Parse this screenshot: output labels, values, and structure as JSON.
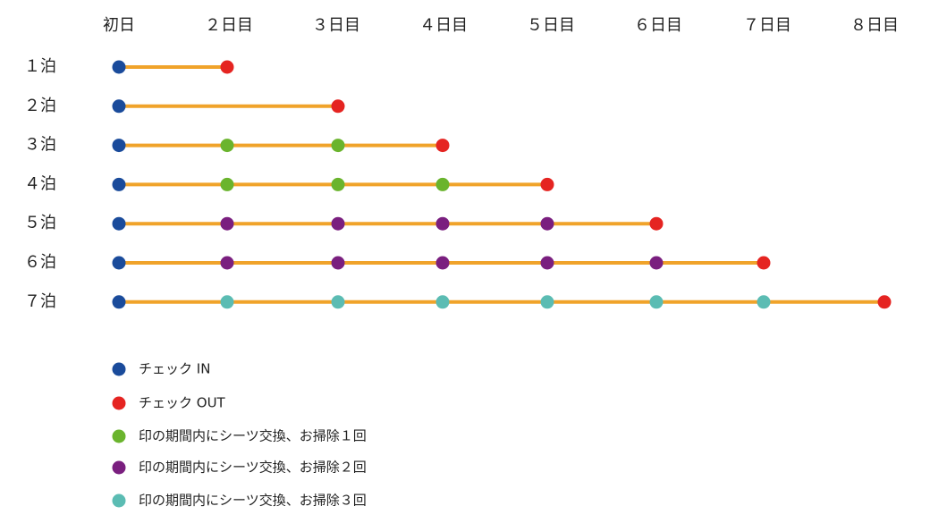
{
  "days": [
    "初日",
    "２日目",
    "３日目",
    "４日目",
    "５日目",
    "６日目",
    "７日目",
    "８日目"
  ],
  "line_color": "#f0a32a",
  "rows": [
    {
      "label": "１泊",
      "colors": [
        "#1a4b9b",
        "#e52421"
      ]
    },
    {
      "label": "２泊",
      "colors": [
        "#1a4b9b",
        null,
        "#e52421"
      ]
    },
    {
      "label": "３泊",
      "colors": [
        "#1a4b9b",
        "#6ab42d",
        "#6ab42d",
        "#e52421"
      ]
    },
    {
      "label": "４泊",
      "colors": [
        "#1a4b9b",
        "#6ab42d",
        "#6ab42d",
        "#6ab42d",
        "#e52421"
      ]
    },
    {
      "label": "５泊",
      "colors": [
        "#1a4b9b",
        "#7a1f7f",
        "#7a1f7f",
        "#7a1f7f",
        "#7a1f7f",
        "#e52421"
      ]
    },
    {
      "label": "６泊",
      "colors": [
        "#1a4b9b",
        "#7a1f7f",
        "#7a1f7f",
        "#7a1f7f",
        "#7a1f7f",
        "#7a1f7f",
        "#e52421"
      ]
    },
    {
      "label": "７泊",
      "colors": [
        "#1a4b9b",
        "#5bbcb3",
        "#5bbcb3",
        "#5bbcb3",
        "#5bbcb3",
        "#5bbcb3",
        "#5bbcb3",
        "#e52421"
      ]
    }
  ],
  "legend": [
    {
      "color": "#1a4b9b",
      "label": "チェック IN"
    },
    {
      "color": "#e52421",
      "label": "チェック OUT"
    },
    {
      "color": "#6ab42d",
      "label": "印の期間内にシーツ交換、お掃除１回"
    },
    {
      "color": "#7a1f7f",
      "label": "印の期間内にシーツ交換、お掃除２回"
    },
    {
      "color": "#5bbcb3",
      "label": "印の期間内にシーツ交換、お掃除３回"
    }
  ]
}
